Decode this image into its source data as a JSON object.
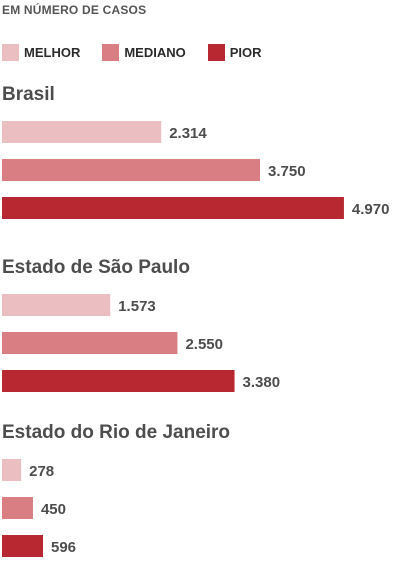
{
  "chart_data": {
    "type": "bar",
    "orientation": "horizontal",
    "title": "",
    "subtitle": "EM NÚMERO DE CASOS",
    "legend": [
      {
        "name": "MELHOR",
        "color": "#ebbfc2"
      },
      {
        "name": "MEDIANO",
        "color": "#d97f83"
      },
      {
        "name": "PIOR",
        "color": "#b82830"
      }
    ],
    "xlim": [
      0,
      5000
    ],
    "groups": [
      {
        "name": "Brasil",
        "values": [
          2314,
          3750,
          4970
        ],
        "labels": [
          "2.314",
          "3.750",
          "4.970"
        ]
      },
      {
        "name": "Estado de São Paulo",
        "values": [
          1573,
          2550,
          3380
        ],
        "labels": [
          "1.573",
          "2.550",
          "3.380"
        ]
      },
      {
        "name": "Estado do Rio de Janeiro",
        "values": [
          278,
          450,
          596
        ],
        "labels": [
          "278",
          "450",
          "596"
        ]
      }
    ]
  }
}
